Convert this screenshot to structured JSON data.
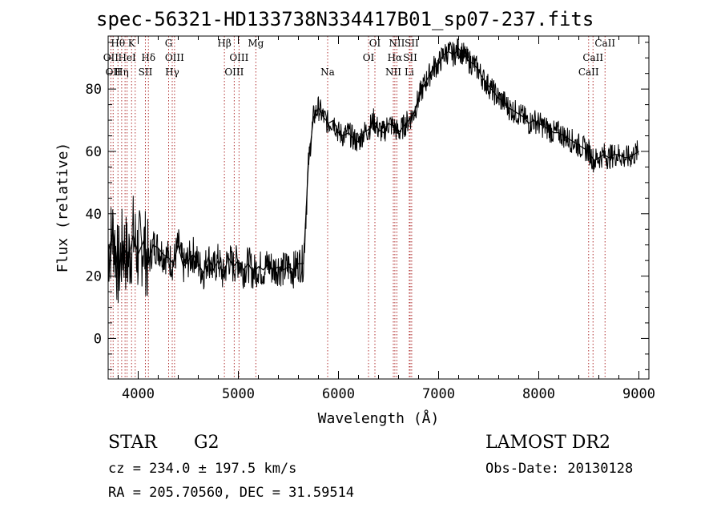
{
  "chart_data": {
    "type": "line",
    "title": "spec-56321-HD133738N334417B01_sp07-237.fits",
    "xlabel": "Wavelength (Å)",
    "ylabel": "Flux (relative)",
    "xlim": [
      3700,
      9100
    ],
    "ylim": [
      -13,
      97
    ],
    "x_ticks": [
      4000,
      5000,
      6000,
      7000,
      8000,
      9000
    ],
    "y_ticks": [
      0,
      20,
      40,
      60,
      80
    ],
    "grid": false,
    "series": [
      {
        "x": [
          3700,
          3750,
          3800,
          3850,
          3900,
          3950,
          4000,
          4050,
          4100,
          4150,
          4200,
          4250,
          4300,
          4350,
          4400,
          4450,
          4500,
          4550,
          4600,
          4650,
          4700,
          4750,
          4800,
          4850,
          4900,
          4950,
          5000,
          5050,
          5100,
          5150,
          5200,
          5250,
          5300,
          5350,
          5400,
          5450,
          5500,
          5550,
          5600,
          5650,
          5700,
          5750,
          5800,
          5850,
          5900,
          5950,
          6000,
          6050,
          6100,
          6150,
          6200,
          6250,
          6300,
          6350,
          6400,
          6450,
          6500,
          6550,
          6600,
          6650,
          6700,
          6750,
          6800,
          6850,
          6900,
          6950,
          7000,
          7050,
          7100,
          7150,
          7200,
          7250,
          7300,
          7350,
          7400,
          7450,
          7500,
          7550,
          7600,
          7650,
          7700,
          7750,
          7800,
          7850,
          7900,
          7950,
          8000,
          8050,
          8100,
          8150,
          8200,
          8250,
          8300,
          8350,
          8400,
          8450,
          8500,
          8550,
          8600,
          8650,
          8700,
          8750,
          8800,
          8850,
          8900,
          8950,
          9000
        ],
        "values": [
          28,
          34,
          22,
          30,
          25,
          33,
          27,
          31,
          24,
          30,
          29,
          27,
          26,
          24,
          30,
          23,
          25,
          27,
          24,
          21,
          26,
          22,
          25,
          20,
          26,
          23,
          25,
          22,
          24,
          21,
          23,
          22,
          24,
          22,
          23,
          22,
          23,
          22,
          24,
          24,
          56,
          71,
          74,
          71,
          69,
          70,
          66,
          65,
          66,
          64,
          63,
          66,
          67,
          70,
          67,
          66,
          69,
          68,
          66,
          68,
          70,
          72,
          77,
          81,
          84,
          87,
          88,
          91,
          92,
          91,
          93,
          91,
          89,
          88,
          86,
          83,
          81,
          79,
          77,
          76,
          74,
          73,
          72,
          71,
          69,
          70,
          69,
          68,
          67,
          66,
          66,
          65,
          64,
          63,
          62,
          61,
          60,
          57,
          58,
          59,
          58,
          59,
          59,
          58,
          58,
          59,
          60
        ]
      }
    ],
    "lines": [
      {
        "x": 3727,
        "label": "OII",
        "row": 2
      },
      {
        "x": 3750,
        "label": "OII",
        "row": 3
      },
      {
        "x": 3798,
        "label": "Hθ",
        "row": 1
      },
      {
        "x": 3835,
        "label": "Hη",
        "row": 3
      },
      {
        "x": 3869,
        "label": "",
        "row": 0
      },
      {
        "x": 3889,
        "label": "HeI",
        "row": 2
      },
      {
        "x": 3934,
        "label": "K",
        "row": 1
      },
      {
        "x": 3970,
        "label": "",
        "row": 0
      },
      {
        "x": 4072,
        "label": "SII",
        "row": 3
      },
      {
        "x": 4102,
        "label": "Hδ",
        "row": 2
      },
      {
        "x": 4304,
        "label": "G",
        "row": 1
      },
      {
        "x": 4340,
        "label": "Hγ",
        "row": 3
      },
      {
        "x": 4363,
        "label": "OIII",
        "row": 2
      },
      {
        "x": 4861,
        "label": "Hβ",
        "row": 1
      },
      {
        "x": 4959,
        "label": "OIII",
        "row": 3
      },
      {
        "x": 5007,
        "label": "OIII",
        "row": 2
      },
      {
        "x": 5175,
        "label": "Mg",
        "row": 1
      },
      {
        "x": 5892,
        "label": "Na",
        "row": 3
      },
      {
        "x": 6300,
        "label": "OI",
        "row": 2
      },
      {
        "x": 6364,
        "label": "OI",
        "row": 1
      },
      {
        "x": 6548,
        "label": "NII",
        "row": 3
      },
      {
        "x": 6563,
        "label": "Hα",
        "row": 2
      },
      {
        "x": 6583,
        "label": "NII",
        "row": 1
      },
      {
        "x": 6707,
        "label": "Li",
        "row": 3
      },
      {
        "x": 6716,
        "label": "SII",
        "row": 2
      },
      {
        "x": 6731,
        "label": "SII",
        "row": 1
      },
      {
        "x": 8498,
        "label": "CaII",
        "row": 3
      },
      {
        "x": 8542,
        "label": "CaII",
        "row": 2
      },
      {
        "x": 8662,
        "label": "CaII",
        "row": 1
      }
    ]
  },
  "info": {
    "class": "STAR",
    "subclass": "G2",
    "survey": "LAMOST DR2",
    "cz": "cz = 234.0 ± 197.5 km/s",
    "obs_date": "Obs-Date: 20130128",
    "radec": "RA = 205.70560, DEC =  31.59514"
  }
}
